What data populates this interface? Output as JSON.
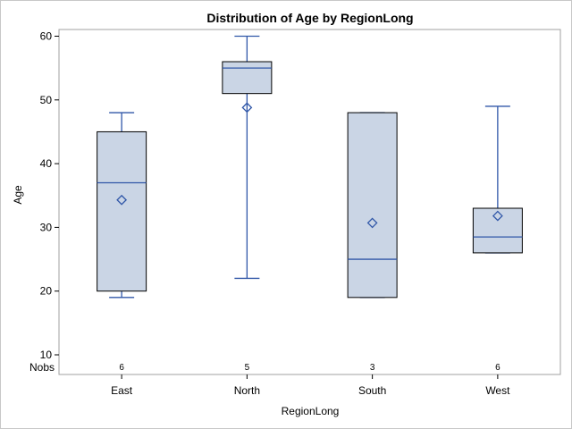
{
  "chart_data": {
    "type": "boxplot",
    "title": "Distribution of Age by RegionLong",
    "xlabel": "RegionLong",
    "ylabel": "Age",
    "ylim": [
      7,
      62
    ],
    "yticks": [
      10,
      20,
      30,
      40,
      50,
      60
    ],
    "categories": [
      "East",
      "North",
      "South",
      "West"
    ],
    "nobs_label": "Nobs",
    "boxes": [
      {
        "category": "East",
        "min": 19,
        "q1": 20,
        "median": 37,
        "q3": 45,
        "max": 48,
        "mean": 34.3,
        "nobs": "6"
      },
      {
        "category": "North",
        "min": 22,
        "q1": 51,
        "median": 55,
        "q3": 56,
        "max": 60,
        "mean": 48.8,
        "nobs": "5"
      },
      {
        "category": "South",
        "min": 19,
        "q1": 19,
        "median": 25,
        "q3": 48,
        "max": 48,
        "mean": 30.7,
        "nobs": "3"
      },
      {
        "category": "West",
        "min": 26,
        "q1": 26,
        "median": 28.5,
        "q3": 33,
        "max": 49,
        "mean": 31.8,
        "nobs": "6"
      }
    ],
    "colors": {
      "box_fill": "#cad5e5",
      "box_stroke": "#000000",
      "whisker": "#3057a8",
      "median": "#3057a8",
      "mean_marker": "#3057a8",
      "frame": "#a0a0a0"
    },
    "grid": false,
    "legend": "none"
  }
}
